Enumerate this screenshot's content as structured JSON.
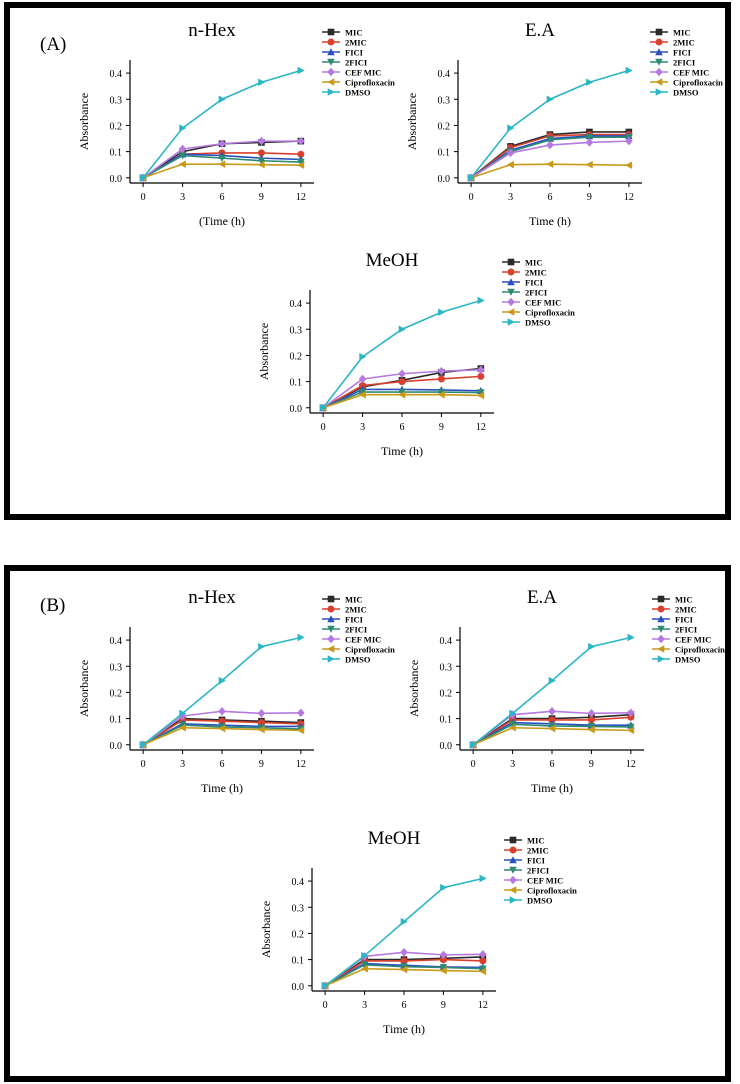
{
  "panels": [
    {
      "id": "A",
      "label": "(A)"
    },
    {
      "id": "B",
      "label": "(B)"
    }
  ],
  "colors": {
    "MIC": "#2b2b2b",
    "2MIC": "#d9412e",
    "FICI": "#2a4fc0",
    "2FICI": "#2e8a73",
    "CEF MIC": "#b57ae0",
    "Ciprofloxacin": "#c89a18",
    "DMSO": "#2bb6c4"
  },
  "chart_data": [
    {
      "panel": "A",
      "type": "line",
      "title": "n-Hex",
      "xlabel": "(Time (h)",
      "ylabel": "Absorbance",
      "x": [
        0,
        3,
        6,
        9,
        12
      ],
      "xticks": [
        "0",
        "3",
        "6",
        "9",
        "12"
      ],
      "ylim": [
        0,
        0.45
      ],
      "yticks": [
        "0.0",
        "0.1",
        "0.2",
        "0.3",
        "0.4"
      ],
      "series": [
        {
          "name": "MIC",
          "values": [
            0,
            0.1,
            0.13,
            0.135,
            0.14
          ]
        },
        {
          "name": "2MIC",
          "values": [
            0,
            0.09,
            0.095,
            0.095,
            0.09
          ]
        },
        {
          "name": "FICI",
          "values": [
            0,
            0.09,
            0.085,
            0.075,
            0.07
          ]
        },
        {
          "name": "2FICI",
          "values": [
            0,
            0.085,
            0.075,
            0.065,
            0.06
          ]
        },
        {
          "name": "CEF MIC",
          "values": [
            0,
            0.11,
            0.13,
            0.14,
            0.14
          ]
        },
        {
          "name": "Ciprofloxacin",
          "values": [
            0,
            0.052,
            0.052,
            0.05,
            0.048
          ]
        },
        {
          "name": "DMSO",
          "values": [
            0,
            0.19,
            0.3,
            0.365,
            0.41
          ]
        }
      ]
    },
    {
      "panel": "A",
      "type": "line",
      "title": "E.A",
      "xlabel": "Time (h)",
      "ylabel": "Absorbance",
      "x": [
        0,
        3,
        6,
        9,
        12
      ],
      "xticks": [
        "0",
        "3",
        "6",
        "9",
        "12"
      ],
      "ylim": [
        0,
        0.45
      ],
      "yticks": [
        "0.0",
        "0.1",
        "0.2",
        "0.3",
        "0.4"
      ],
      "series": [
        {
          "name": "MIC",
          "values": [
            0,
            0.12,
            0.165,
            0.175,
            0.175
          ]
        },
        {
          "name": "2MIC",
          "values": [
            0,
            0.115,
            0.16,
            0.165,
            0.165
          ]
        },
        {
          "name": "FICI",
          "values": [
            0,
            0.105,
            0.15,
            0.16,
            0.16
          ]
        },
        {
          "name": "2FICI",
          "values": [
            0,
            0.1,
            0.145,
            0.155,
            0.155
          ]
        },
        {
          "name": "CEF MIC",
          "values": [
            0,
            0.095,
            0.125,
            0.135,
            0.14
          ]
        },
        {
          "name": "Ciprofloxacin",
          "values": [
            0,
            0.05,
            0.052,
            0.05,
            0.048
          ]
        },
        {
          "name": "DMSO",
          "values": [
            0,
            0.19,
            0.3,
            0.365,
            0.41
          ]
        }
      ]
    },
    {
      "panel": "A",
      "type": "line",
      "title": "MeOH",
      "xlabel": "Time (h)",
      "ylabel": "Absorbance",
      "x": [
        0,
        3,
        6,
        9,
        12
      ],
      "xticks": [
        "0",
        "3",
        "6",
        "9",
        "12"
      ],
      "ylim": [
        0,
        0.45
      ],
      "yticks": [
        "0.0",
        "0.1",
        "0.2",
        "0.3",
        "0.4"
      ],
      "series": [
        {
          "name": "MIC",
          "values": [
            0,
            0.08,
            0.105,
            0.135,
            0.15
          ]
        },
        {
          "name": "2MIC",
          "values": [
            0,
            0.085,
            0.1,
            0.11,
            0.12
          ]
        },
        {
          "name": "FICI",
          "values": [
            0,
            0.07,
            0.07,
            0.068,
            0.065
          ]
        },
        {
          "name": "2FICI",
          "values": [
            0,
            0.06,
            0.06,
            0.06,
            0.058
          ]
        },
        {
          "name": "CEF MIC",
          "values": [
            0,
            0.11,
            0.13,
            0.14,
            0.145
          ]
        },
        {
          "name": "Ciprofloxacin",
          "values": [
            0,
            0.05,
            0.05,
            0.05,
            0.047
          ]
        },
        {
          "name": "DMSO",
          "values": [
            0,
            0.195,
            0.3,
            0.365,
            0.41
          ]
        }
      ]
    },
    {
      "panel": "B",
      "type": "line",
      "title": "n-Hex",
      "xlabel": "Time (h)",
      "ylabel": "Absorbance",
      "x": [
        0,
        3,
        6,
        9,
        12
      ],
      "xticks": [
        "0",
        "3",
        "6",
        "9",
        "12"
      ],
      "ylim": [
        0,
        0.45
      ],
      "yticks": [
        "0.0",
        "0.1",
        "0.2",
        "0.3",
        "0.4"
      ],
      "series": [
        {
          "name": "MIC",
          "values": [
            0,
            0.1,
            0.095,
            0.09,
            0.085
          ]
        },
        {
          "name": "2MIC",
          "values": [
            0,
            0.095,
            0.09,
            0.085,
            0.08
          ]
        },
        {
          "name": "FICI",
          "values": [
            0,
            0.08,
            0.075,
            0.07,
            0.07
          ]
        },
        {
          "name": "2FICI",
          "values": [
            0,
            0.075,
            0.068,
            0.065,
            0.06
          ]
        },
        {
          "name": "CEF MIC",
          "values": [
            0,
            0.11,
            0.128,
            0.12,
            0.122
          ]
        },
        {
          "name": "Ciprofloxacin",
          "values": [
            0,
            0.065,
            0.062,
            0.058,
            0.055
          ]
        },
        {
          "name": "DMSO",
          "values": [
            0,
            0.12,
            0.245,
            0.375,
            0.41
          ]
        }
      ]
    },
    {
      "panel": "B",
      "type": "line",
      "title": "E.A",
      "xlabel": "Time (h)",
      "ylabel": "Absorbance",
      "x": [
        0,
        3,
        6,
        9,
        12
      ],
      "xticks": [
        "0",
        "3",
        "6",
        "9",
        "12"
      ],
      "ylim": [
        0,
        0.45
      ],
      "yticks": [
        "0.0",
        "0.1",
        "0.2",
        "0.3",
        "0.4"
      ],
      "series": [
        {
          "name": "MIC",
          "values": [
            0,
            0.1,
            0.1,
            0.105,
            0.115
          ]
        },
        {
          "name": "2MIC",
          "values": [
            0,
            0.095,
            0.095,
            0.095,
            0.105
          ]
        },
        {
          "name": "FICI",
          "values": [
            0,
            0.085,
            0.08,
            0.075,
            0.075
          ]
        },
        {
          "name": "2FICI",
          "values": [
            0,
            0.078,
            0.072,
            0.07,
            0.068
          ]
        },
        {
          "name": "CEF MIC",
          "values": [
            0,
            0.115,
            0.128,
            0.12,
            0.122
          ]
        },
        {
          "name": "Ciprofloxacin",
          "values": [
            0,
            0.065,
            0.062,
            0.058,
            0.055
          ]
        },
        {
          "name": "DMSO",
          "values": [
            0,
            0.12,
            0.245,
            0.375,
            0.41
          ]
        }
      ]
    },
    {
      "panel": "B",
      "type": "line",
      "title": "MeOH",
      "xlabel": "Time (h)",
      "ylabel": "Absorbance",
      "x": [
        0,
        3,
        6,
        9,
        12
      ],
      "xticks": [
        "0",
        "3",
        "6",
        "9",
        "12"
      ],
      "ylim": [
        0,
        0.45
      ],
      "yticks": [
        "0.0",
        "0.1",
        "0.2",
        "0.3",
        "0.4"
      ],
      "series": [
        {
          "name": "MIC",
          "values": [
            0,
            0.1,
            0.1,
            0.105,
            0.11
          ]
        },
        {
          "name": "2MIC",
          "values": [
            0,
            0.095,
            0.095,
            0.1,
            0.095
          ]
        },
        {
          "name": "FICI",
          "values": [
            0,
            0.085,
            0.078,
            0.072,
            0.07
          ]
        },
        {
          "name": "2FICI",
          "values": [
            0,
            0.08,
            0.073,
            0.07,
            0.065
          ]
        },
        {
          "name": "CEF MIC",
          "values": [
            0,
            0.112,
            0.128,
            0.118,
            0.12
          ]
        },
        {
          "name": "Ciprofloxacin",
          "values": [
            0,
            0.065,
            0.062,
            0.058,
            0.055
          ]
        },
        {
          "name": "DMSO",
          "values": [
            0,
            0.115,
            0.245,
            0.375,
            0.41
          ]
        }
      ]
    }
  ]
}
